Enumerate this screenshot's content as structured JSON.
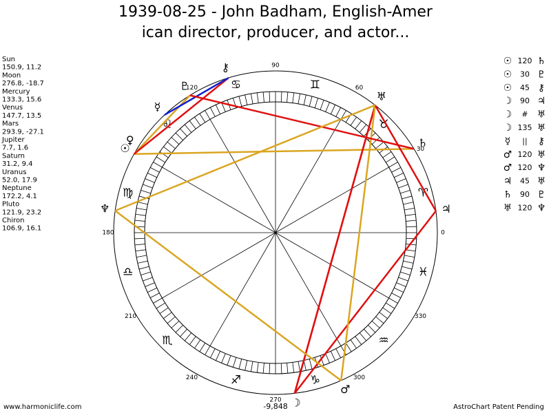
{
  "header": {
    "title_lines": [
      "1939-08-25 - John Badham, English-Amer",
      "ican director, producer, and actor..."
    ]
  },
  "planets": [
    {
      "name": "Sun",
      "coords": "150.9, 11.2",
      "glyph": "☉"
    },
    {
      "name": "Moon",
      "coords": "276.8, -18.7",
      "glyph": "☽"
    },
    {
      "name": "Mercury",
      "coords": "133.3, 15.6",
      "glyph": "☿"
    },
    {
      "name": "Venus",
      "coords": "147.7, 13.5",
      "glyph": "♀"
    },
    {
      "name": "Mars",
      "coords": "293.9, -27.1",
      "glyph": "♂"
    },
    {
      "name": "Jupiter",
      "coords": "7.7, 1.6",
      "glyph": "♃"
    },
    {
      "name": "Saturn",
      "coords": "31.2, 9.4",
      "glyph": "♄"
    },
    {
      "name": "Uranus",
      "coords": "52.0, 17.9",
      "glyph": "♅"
    },
    {
      "name": "Neptune",
      "coords": "172.2, 4.1",
      "glyph": "♆"
    },
    {
      "name": "Pluto",
      "coords": "121.9, 23.2",
      "glyph": "♇"
    },
    {
      "name": "Chiron",
      "coords": "106.9, 16.1",
      "glyph": "⚷"
    }
  ],
  "aspects": [
    {
      "glyphs": [
        "☉",
        "♄"
      ],
      "label": "120",
      "color": "#daa520"
    },
    {
      "glyphs": [
        "☉",
        "♇"
      ],
      "label": "30",
      "color": "#daa520"
    },
    {
      "glyphs": [
        "☉",
        "⚷"
      ],
      "label": "45",
      "color": "#e01010"
    },
    {
      "glyphs": [
        "☽",
        "♃"
      ],
      "label": "90",
      "color": "#e01010"
    },
    {
      "glyphs": [
        "☽",
        "♅"
      ],
      "label": "#",
      "color": "#e01010"
    },
    {
      "glyphs": [
        "☽",
        "♅"
      ],
      "label": "135",
      "color": "#e01010"
    },
    {
      "glyphs": [
        "☿",
        "⚷"
      ],
      "label": "||",
      "color": "#1020d0"
    },
    {
      "glyphs": [
        "♂",
        "♅"
      ],
      "label": "120",
      "color": "#daa520"
    },
    {
      "glyphs": [
        "♂",
        "♆"
      ],
      "label": "120",
      "color": "#daa520"
    },
    {
      "glyphs": [
        "♃",
        "♅"
      ],
      "label": "45",
      "color": "#e01010"
    },
    {
      "glyphs": [
        "♄",
        "♇"
      ],
      "label": "90",
      "color": "#e01010"
    },
    {
      "glyphs": [
        "♅",
        "♆"
      ],
      "label": "120",
      "color": "#daa520"
    }
  ],
  "wheel": {
    "degree_labels": [
      "0",
      "30",
      "60",
      "90",
      "120",
      "180",
      "210",
      "240",
      "270",
      "300",
      "330"
    ],
    "signs": [
      "♈",
      "♉",
      "♊",
      "♋",
      "♌",
      "♍",
      "♎",
      "♏",
      "♐",
      "♑",
      "♒",
      "♓"
    ],
    "bottom_note": "-9,848"
  },
  "footer": {
    "left": "www.harmoniclife.com",
    "right": "AstroChart Patent Pending"
  }
}
